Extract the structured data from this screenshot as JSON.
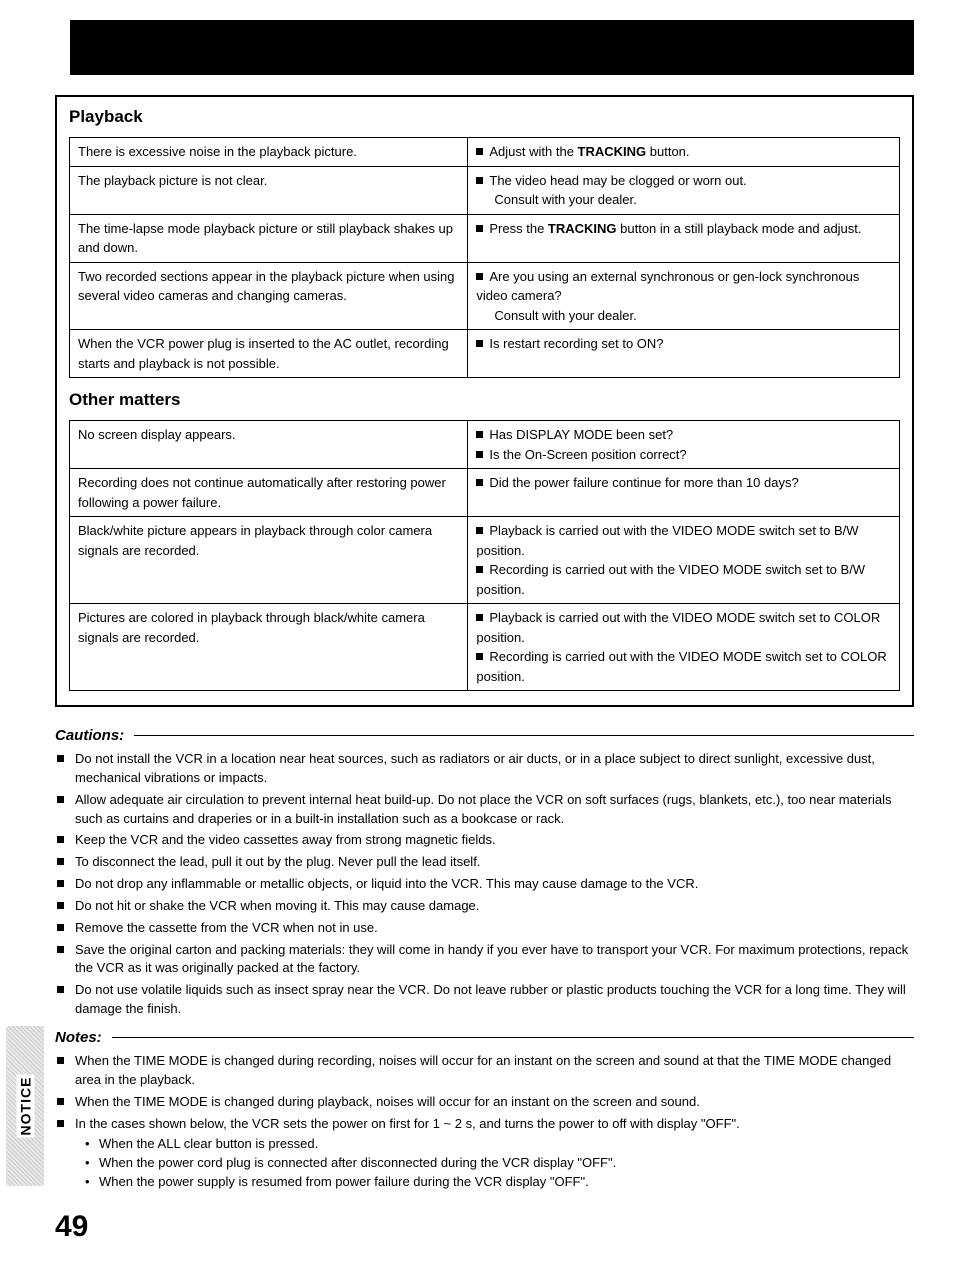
{
  "banner": "",
  "playback": {
    "title": "Playback",
    "rows": [
      {
        "problem": "There is excessive noise in the playback picture.",
        "solutions": [
          {
            "pre": "Adjust with the ",
            "bold": "TRACKING",
            "post": " button."
          }
        ]
      },
      {
        "problem": "The playback picture is not clear.",
        "solutions": [
          {
            "pre": "The video head may be clogged or worn out.",
            "bold": "",
            "post": ""
          }
        ],
        "extra": [
          "Consult with your dealer."
        ]
      },
      {
        "problem": "The time-lapse mode playback picture or still playback shakes up and down.",
        "solutions": [
          {
            "pre": "Press the ",
            "bold": "TRACKING",
            "post": " button in a still playback mode and adjust."
          }
        ]
      },
      {
        "problem": "Two recorded sections appear in the playback picture when using several video cameras and changing cameras.",
        "solutions": [
          {
            "pre": "Are you using an external synchronous or gen-lock synchronous video camera?",
            "bold": "",
            "post": ""
          }
        ],
        "extra": [
          "Consult with your dealer."
        ]
      },
      {
        "problem": "When the VCR power plug is inserted to the AC outlet, recording starts and playback is not possible.",
        "solutions": [
          {
            "pre": "Is restart recording set to ON?",
            "bold": "",
            "post": ""
          }
        ]
      }
    ]
  },
  "other": {
    "title": "Other matters",
    "rows": [
      {
        "problem": "No screen display appears.",
        "solutions": [
          "Has DISPLAY MODE been set?",
          "Is the On-Screen position correct?"
        ]
      },
      {
        "problem": "Recording does not continue automatically after restoring power following a power failure.",
        "solutions": [
          "Did the power failure continue for more than 10 days?"
        ]
      },
      {
        "problem": "Black/white picture appears in playback through color camera signals are recorded.",
        "solutions": [
          "Playback is carried out with the VIDEO MODE switch set to B/W position.",
          "Recording is carried out with the VIDEO MODE switch set to B/W position."
        ]
      },
      {
        "problem": "Pictures are colored in playback through black/white camera signals are recorded.",
        "solutions": [
          "Playback is carried out with the VIDEO MODE switch set to COLOR position.",
          "Recording is carried out with the VIDEO MODE switch set to COLOR position."
        ]
      }
    ]
  },
  "cautions": {
    "title": "Cautions:",
    "items": [
      "Do not install the VCR in a location near heat sources, such as radiators or air ducts, or in a place subject to direct sunlight, excessive dust, mechanical vibrations or impacts.",
      "Allow adequate air circulation to prevent internal heat build-up. Do not place the VCR on soft surfaces (rugs, blankets, etc.), too near materials such as curtains and draperies or in a built-in installation such as a bookcase or rack.",
      "Keep the VCR and the video cassettes away from strong magnetic fields.",
      "To disconnect the lead, pull it out by the plug. Never pull the lead itself.",
      "Do not drop any inflammable or metallic objects, or liquid into the VCR. This may cause damage to the VCR.",
      "Do not hit or shake the VCR when moving it. This may cause damage.",
      "Remove the cassette from the VCR when not in use.",
      "Save the original carton and packing materials: they will come in handy if you ever have to transport your VCR. For maximum protections, repack the VCR as it was originally packed at the factory.",
      "Do not use volatile liquids such as insect spray near the VCR. Do not leave rubber or plastic products touching the VCR for a long time. They will damage the finish."
    ]
  },
  "notes": {
    "title": "Notes:",
    "items": [
      "When the TIME MODE is changed during recording, noises will occur for an instant on the screen and sound at that the TIME MODE changed area in the playback.",
      "When the TIME MODE is changed during playback, noises will occur for an instant on the screen and sound.",
      "In the cases shown below, the VCR sets the power on first for 1 ~ 2 s, and turns the power to off with display \"OFF\"."
    ],
    "sub": [
      "When the ALL clear button is pressed.",
      "When the power cord plug is connected after disconnected during the VCR display \"OFF\".",
      "When the power supply is resumed from power failure during the VCR display \"OFF\"."
    ]
  },
  "sideTab": "NOTICE",
  "pageNumber": "49"
}
